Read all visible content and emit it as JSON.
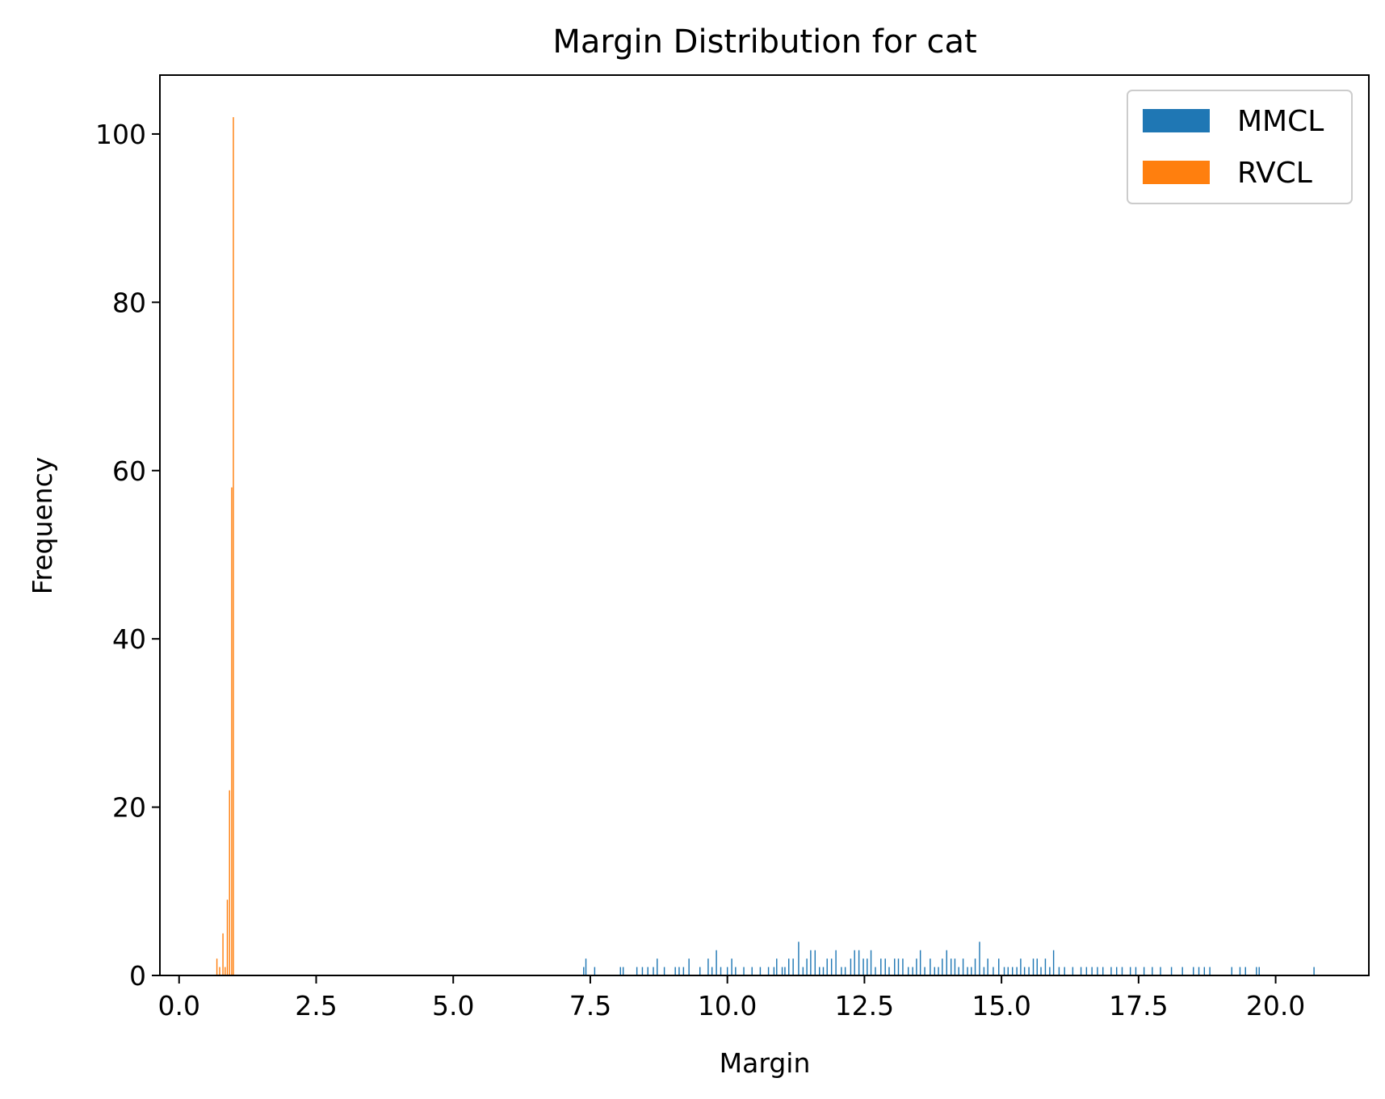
{
  "chart_data": {
    "type": "bar",
    "title": "Margin Distribution for cat",
    "xlabel": "Margin",
    "ylabel": "Frequency",
    "xlim": [
      -0.35,
      21.7
    ],
    "ylim": [
      0,
      107
    ],
    "xticks": [
      0.0,
      2.5,
      5.0,
      7.5,
      10.0,
      12.5,
      15.0,
      17.5,
      20.0
    ],
    "xtick_labels": [
      "0.0",
      "2.5",
      "5.0",
      "7.5",
      "10.0",
      "12.5",
      "15.0",
      "17.5",
      "20.0"
    ],
    "yticks": [
      0,
      20,
      40,
      60,
      80,
      100
    ],
    "ytick_labels": [
      "0",
      "20",
      "40",
      "60",
      "80",
      "100"
    ],
    "bin_width": 0.021,
    "grid": false,
    "legend_position": "top-right",
    "series": [
      {
        "name": "MMCL",
        "color": "#1f77b4",
        "x": [
          7.38,
          7.42,
          7.58,
          8.05,
          8.1,
          8.35,
          8.45,
          8.55,
          8.65,
          8.72,
          8.85,
          9.05,
          9.12,
          9.2,
          9.3,
          9.5,
          9.65,
          9.72,
          9.8,
          9.88,
          10.0,
          10.08,
          10.15,
          10.3,
          10.45,
          10.6,
          10.75,
          10.85,
          10.9,
          11.0,
          11.05,
          11.12,
          11.2,
          11.3,
          11.38,
          11.45,
          11.52,
          11.6,
          11.68,
          11.75,
          11.82,
          11.9,
          11.98,
          12.08,
          12.15,
          12.25,
          12.32,
          12.4,
          12.48,
          12.55,
          12.62,
          12.7,
          12.8,
          12.88,
          12.95,
          13.05,
          13.12,
          13.2,
          13.3,
          13.38,
          13.45,
          13.52,
          13.6,
          13.7,
          13.78,
          13.85,
          13.92,
          14.0,
          14.08,
          14.15,
          14.22,
          14.3,
          14.38,
          14.45,
          14.52,
          14.6,
          14.68,
          14.75,
          14.85,
          14.95,
          15.05,
          15.12,
          15.2,
          15.28,
          15.35,
          15.42,
          15.5,
          15.58,
          15.65,
          15.72,
          15.8,
          15.88,
          15.95,
          16.05,
          16.15,
          16.3,
          16.45,
          16.55,
          16.65,
          16.75,
          16.85,
          17.0,
          17.1,
          17.2,
          17.35,
          17.45,
          17.6,
          17.75,
          17.9,
          18.1,
          18.3,
          18.5,
          18.6,
          18.7,
          18.8,
          19.2,
          19.35,
          19.45,
          19.65,
          19.7,
          20.7
        ],
        "values": [
          1,
          2,
          1,
          1,
          1,
          1,
          1,
          1,
          1,
          2,
          1,
          1,
          1,
          1,
          2,
          1,
          2,
          1,
          3,
          1,
          1,
          2,
          1,
          1,
          1,
          1,
          1,
          1,
          2,
          1,
          1,
          2,
          2,
          4,
          1,
          2,
          3,
          3,
          1,
          1,
          2,
          2,
          3,
          1,
          1,
          2,
          3,
          3,
          2,
          2,
          3,
          1,
          2,
          2,
          1,
          2,
          2,
          2,
          1,
          1,
          2,
          3,
          1,
          2,
          1,
          1,
          2,
          3,
          2,
          2,
          1,
          2,
          1,
          1,
          2,
          4,
          1,
          2,
          1,
          2,
          1,
          1,
          1,
          1,
          2,
          1,
          1,
          2,
          2,
          1,
          2,
          1,
          3,
          1,
          1,
          1,
          1,
          1,
          1,
          1,
          1,
          1,
          1,
          1,
          1,
          1,
          1,
          1,
          1,
          1,
          1,
          1,
          1,
          1,
          1,
          1,
          1,
          1,
          1,
          1,
          1
        ]
      },
      {
        "name": "RVCL",
        "color": "#ff7f0e",
        "x": [
          0.69,
          0.74,
          0.8,
          0.84,
          0.88,
          0.92,
          0.96,
          0.99
        ],
        "values": [
          2,
          1,
          5,
          1,
          9,
          22,
          58,
          102
        ]
      }
    ]
  }
}
